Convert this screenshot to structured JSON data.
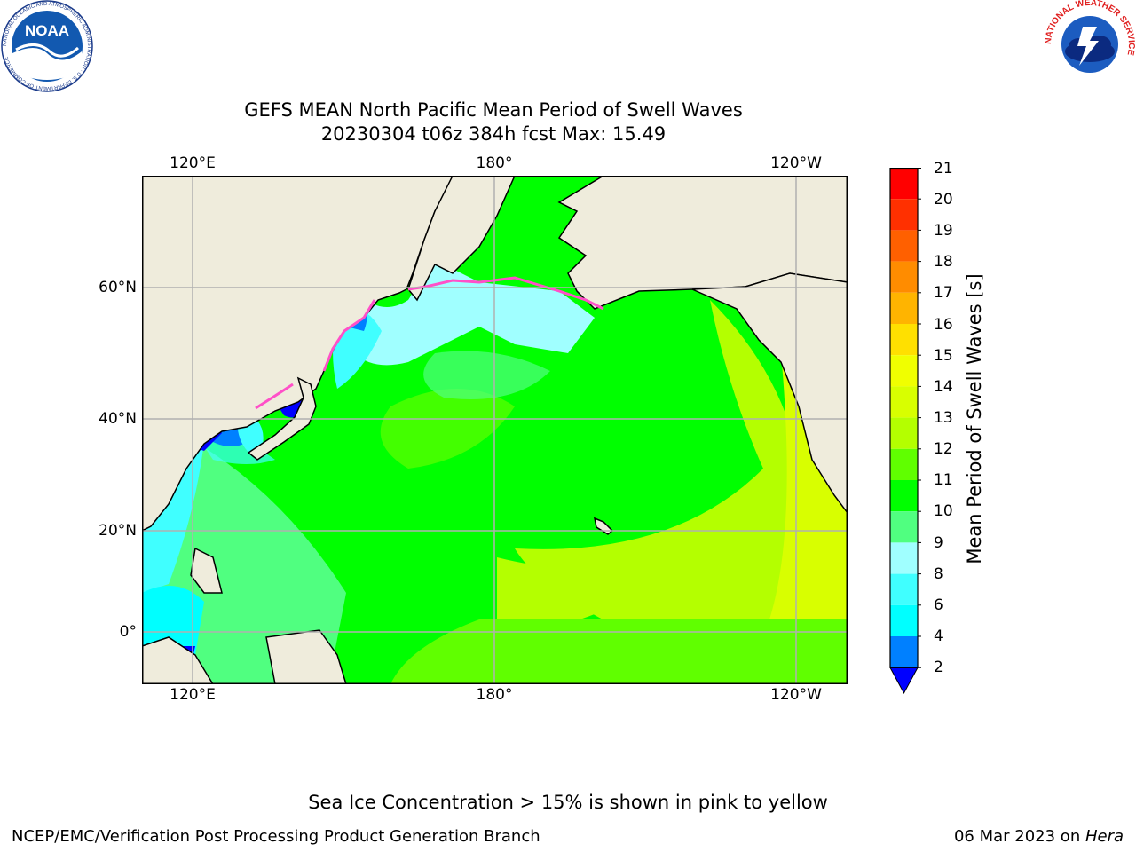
{
  "title": {
    "line1": "GEFS MEAN North Pacific Mean Period of Swell Waves",
    "line2": "20230304 t06z 384h fcst   Max: 15.49"
  },
  "logos": {
    "noaa_text": "NOAA",
    "noaa_ring": "NATIONAL OCEANIC AND ATMOSPHERIC ADMINISTRATION · U.S. DEPARTMENT OF COMMERCE",
    "nws_ring": "NATIONAL WEATHER SERVICE"
  },
  "axes": {
    "x_top": [
      "120°E",
      "180°",
      "120°W"
    ],
    "x_bottom": [
      "120°E",
      "180°",
      "120°W"
    ],
    "y_left": [
      "60°N",
      "40°N",
      "20°N",
      "0°"
    ]
  },
  "colorbar": {
    "label": "Mean Period of Swell Waves [s]",
    "ticks": [
      "21",
      "20",
      "19",
      "18",
      "17",
      "16",
      "15",
      "14",
      "13",
      "12",
      "11",
      "10",
      "9",
      "8",
      "6",
      "4",
      "2"
    ],
    "colors": {
      "c20_21": "#ff0000",
      "c19_20": "#ff3000",
      "c18_19": "#ff6000",
      "c17_18": "#ff8c00",
      "c16_17": "#ffb400",
      "c15_16": "#ffe000",
      "c14_15": "#f0ff00",
      "c13_14": "#d8ff00",
      "c12_13": "#b4ff00",
      "c11_12": "#60ff00",
      "c10_11": "#00ff00",
      "c9_10": "#50ff80",
      "c8_9": "#a0ffff",
      "c6_8": "#40ffff",
      "c4_6": "#00ffff",
      "c2_4": "#0080ff",
      "below_2": "#0000ff"
    }
  },
  "map_colors": {
    "land": "#efecdc",
    "ice_edge": "#ff50c8",
    "grid": "#b0b0b0"
  },
  "note": "Sea Ice Concentration > 15% is shown in pink to yellow",
  "footer": {
    "left": "NCEP/EMC/Verification Post Processing Product Generation Branch",
    "date": "06 Mar 2023 on ",
    "host": "Hera"
  }
}
